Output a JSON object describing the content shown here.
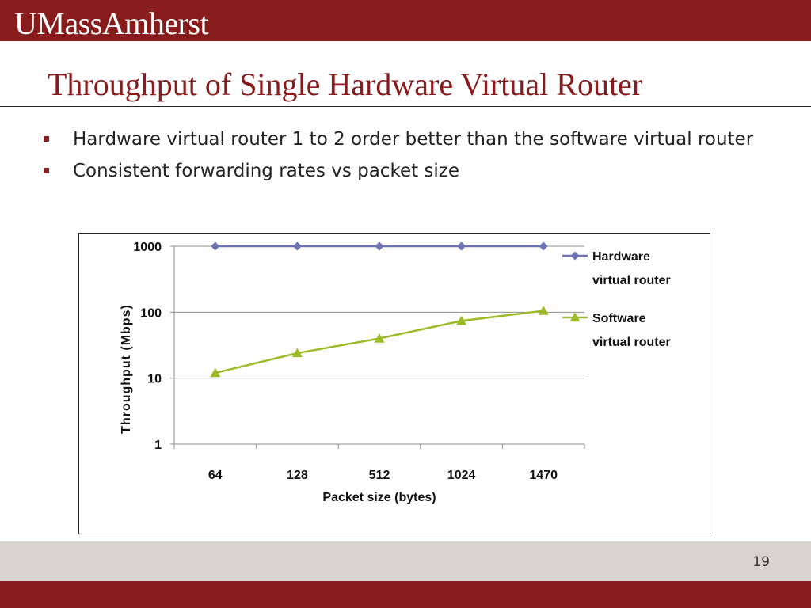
{
  "header": {
    "logo_text": "UMassAmherst"
  },
  "slide": {
    "title": "Throughput of Single Hardware Virtual Router",
    "bullets": [
      "Hardware virtual router 1 to 2 order better than the software virtual router",
      "Consistent forwarding rates vs packet size"
    ],
    "page_number": "19"
  },
  "colors": {
    "brand": "#881c1c",
    "hardware": "#6b73b0",
    "software": "#9bbb26"
  },
  "chart_data": {
    "type": "line",
    "yscale": "log",
    "ylim": [
      1,
      1000
    ],
    "yticks": [
      "1",
      "10",
      "100",
      "1000"
    ],
    "categories": [
      "64",
      "128",
      "512",
      "1024",
      "1470"
    ],
    "xlabel": "Packet size (bytes)",
    "ylabel": "Throughput (Mbps)",
    "legend_position": "right",
    "grid": true,
    "series": [
      {
        "name": "Hardware virtual router",
        "marker": "diamond",
        "values": [
          1000,
          1000,
          1000,
          1000,
          1000
        ]
      },
      {
        "name": "Software virtual router",
        "marker": "triangle",
        "values": [
          12,
          24,
          40,
          74,
          105
        ]
      }
    ]
  }
}
